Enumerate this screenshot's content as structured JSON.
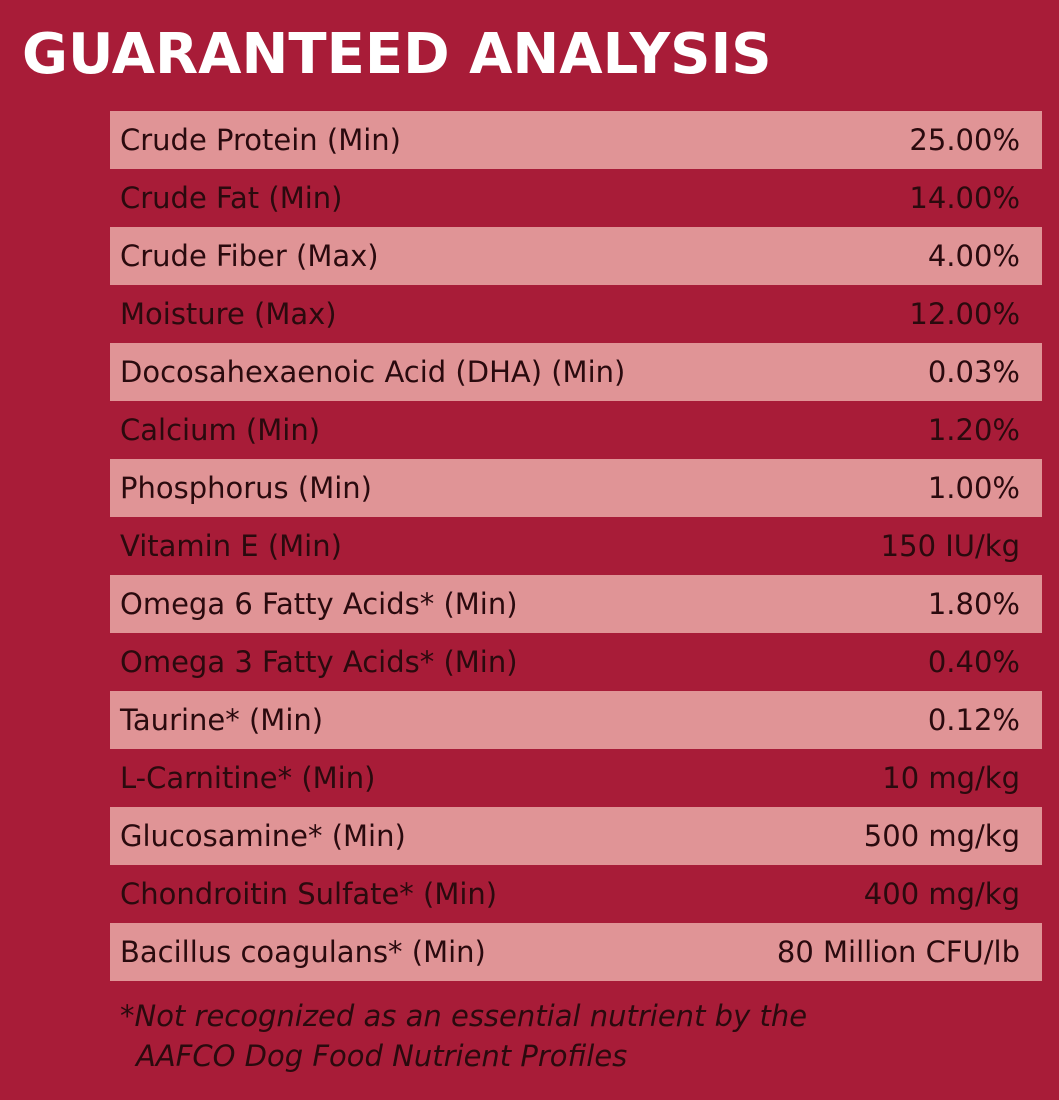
{
  "title": "GUARANTEED ANALYSIS",
  "colors": {
    "background": "#a81c38",
    "row_shaded": "#e09496",
    "text_dark": "#2a0a0e",
    "title_text": "#ffffff"
  },
  "rows": [
    {
      "label": "Crude Protein (Min)",
      "value": "25.00%"
    },
    {
      "label": "Crude Fat (Min)",
      "value": "14.00%"
    },
    {
      "label": "Crude Fiber (Max)",
      "value": "4.00%"
    },
    {
      "label": "Moisture (Max)",
      "value": "12.00%"
    },
    {
      "label": "Docosahexaenoic Acid (DHA) (Min)",
      "value": "0.03%"
    },
    {
      "label": "Calcium (Min)",
      "value": "1.20%"
    },
    {
      "label": "Phosphorus (Min)",
      "value": "1.00%"
    },
    {
      "label": "Vitamin E (Min)",
      "value": "150 IU/kg"
    },
    {
      "label": "Omega 6 Fatty Acids* (Min)",
      "value": "1.80%"
    },
    {
      "label": "Omega 3 Fatty Acids* (Min)",
      "value": "0.40%"
    },
    {
      "label": "Taurine* (Min)",
      "value": "0.12%"
    },
    {
      "label": "L-Carnitine* (Min)",
      "value": "10 mg/kg"
    },
    {
      "label": "Glucosamine* (Min)",
      "value": "500 mg/kg"
    },
    {
      "label": "Chondroitin Sulfate* (Min)",
      "value": "400 mg/kg"
    },
    {
      "label": "Bacillus coagulans* (Min)",
      "value": "80 Million CFU/lb"
    }
  ],
  "footnote": {
    "line1": "*Not recognized as an essential nutrient by the",
    "line2": "AAFCO Dog Food Nutrient Profiles"
  }
}
